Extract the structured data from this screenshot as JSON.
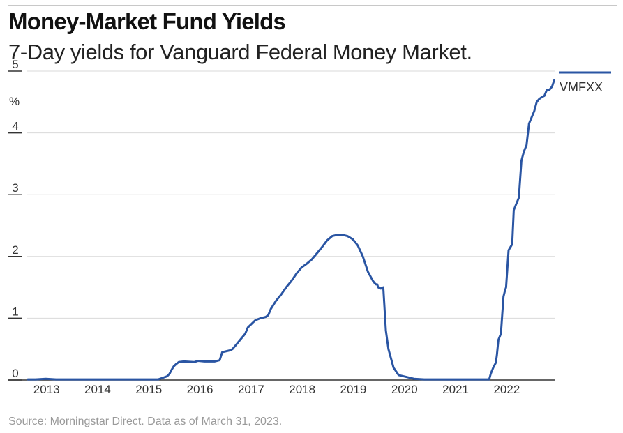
{
  "header": {
    "title": "Money-Market Fund Yields",
    "subtitle": "7-Day yields for Vanguard Federal Money Market."
  },
  "footer": {
    "source": "Source: Morningstar Direct. Data as of March 31, 2023."
  },
  "colors": {
    "series": "#2a55a3",
    "grid": "#d9d9d9",
    "axis": "#333333"
  },
  "chart_data": {
    "type": "line",
    "title": "Money-Market Fund Yields",
    "subtitle": "7-Day yields for Vanguard Federal Money Market.",
    "ylabel": "%",
    "xlim": [
      2012.95,
      2023.25
    ],
    "ylim": [
      0,
      5
    ],
    "y_ticks": [
      0,
      1,
      2,
      3,
      4,
      5
    ],
    "x_ticks": [
      2013,
      2014,
      2015,
      2016,
      2017,
      2018,
      2019,
      2020,
      2021,
      2022
    ],
    "grid": true,
    "legend": "right",
    "series": [
      {
        "name": "VMFXX",
        "x": [
          2012.95,
          2013.1,
          2013.3,
          2013.5,
          2014.0,
          2015.0,
          2015.3,
          2015.5,
          2015.6,
          2015.67,
          2015.72,
          2015.75,
          2015.8,
          2015.85,
          2015.9,
          2016.0,
          2016.2,
          2016.28,
          2016.4,
          2016.6,
          2016.7,
          2016.75,
          2016.9,
          2016.95,
          2017.0,
          2017.1,
          2017.2,
          2017.25,
          2017.35,
          2017.4,
          2017.5,
          2017.55,
          2017.6,
          2017.65,
          2017.7,
          2017.8,
          2017.9,
          2018.0,
          2018.1,
          2018.2,
          2018.3,
          2018.4,
          2018.5,
          2018.6,
          2018.7,
          2018.8,
          2018.9,
          2019.0,
          2019.1,
          2019.2,
          2019.3,
          2019.4,
          2019.5,
          2019.6,
          2019.7,
          2019.75,
          2019.78,
          2019.8,
          2019.85,
          2019.9,
          2019.95,
          2020.0,
          2020.1,
          2020.2,
          2020.3,
          2020.5,
          2020.7,
          2020.9,
          2021.0,
          2021.5,
          2021.8,
          2021.97,
          2022.0,
          2022.05,
          2022.1,
          2022.12,
          2022.15,
          2022.2,
          2022.25,
          2022.28,
          2022.3,
          2022.35,
          2022.4,
          2022.42,
          2022.45,
          2022.5,
          2022.55,
          2022.6,
          2022.65,
          2022.7,
          2022.75,
          2022.8,
          2022.85,
          2022.9,
          2022.95,
          2023.0,
          2023.05,
          2023.1,
          2023.15,
          2023.2,
          2023.24
        ],
        "values": [
          0.01,
          0.01,
          0.02,
          0.01,
          0.01,
          0.01,
          0.01,
          0.01,
          0.04,
          0.06,
          0.1,
          0.15,
          0.22,
          0.26,
          0.29,
          0.3,
          0.29,
          0.31,
          0.3,
          0.3,
          0.32,
          0.45,
          0.48,
          0.5,
          0.55,
          0.65,
          0.75,
          0.85,
          0.93,
          0.97,
          1.0,
          1.01,
          1.02,
          1.05,
          1.15,
          1.28,
          1.38,
          1.5,
          1.6,
          1.72,
          1.82,
          1.88,
          1.95,
          2.05,
          2.15,
          2.26,
          2.33,
          2.35,
          2.35,
          2.33,
          2.28,
          2.18,
          2.0,
          1.75,
          1.6,
          1.55,
          1.55,
          1.5,
          1.48,
          1.5,
          0.8,
          0.5,
          0.2,
          0.08,
          0.06,
          0.02,
          0.01,
          0.01,
          0.01,
          0.01,
          0.01,
          0.01,
          0.1,
          0.2,
          0.28,
          0.4,
          0.65,
          0.75,
          1.35,
          1.45,
          1.5,
          2.1,
          2.17,
          2.2,
          2.75,
          2.85,
          2.95,
          3.55,
          3.7,
          3.8,
          4.15,
          4.25,
          4.35,
          4.5,
          4.55,
          4.58,
          4.6,
          4.7,
          4.7,
          4.75,
          4.85
        ]
      }
    ]
  }
}
